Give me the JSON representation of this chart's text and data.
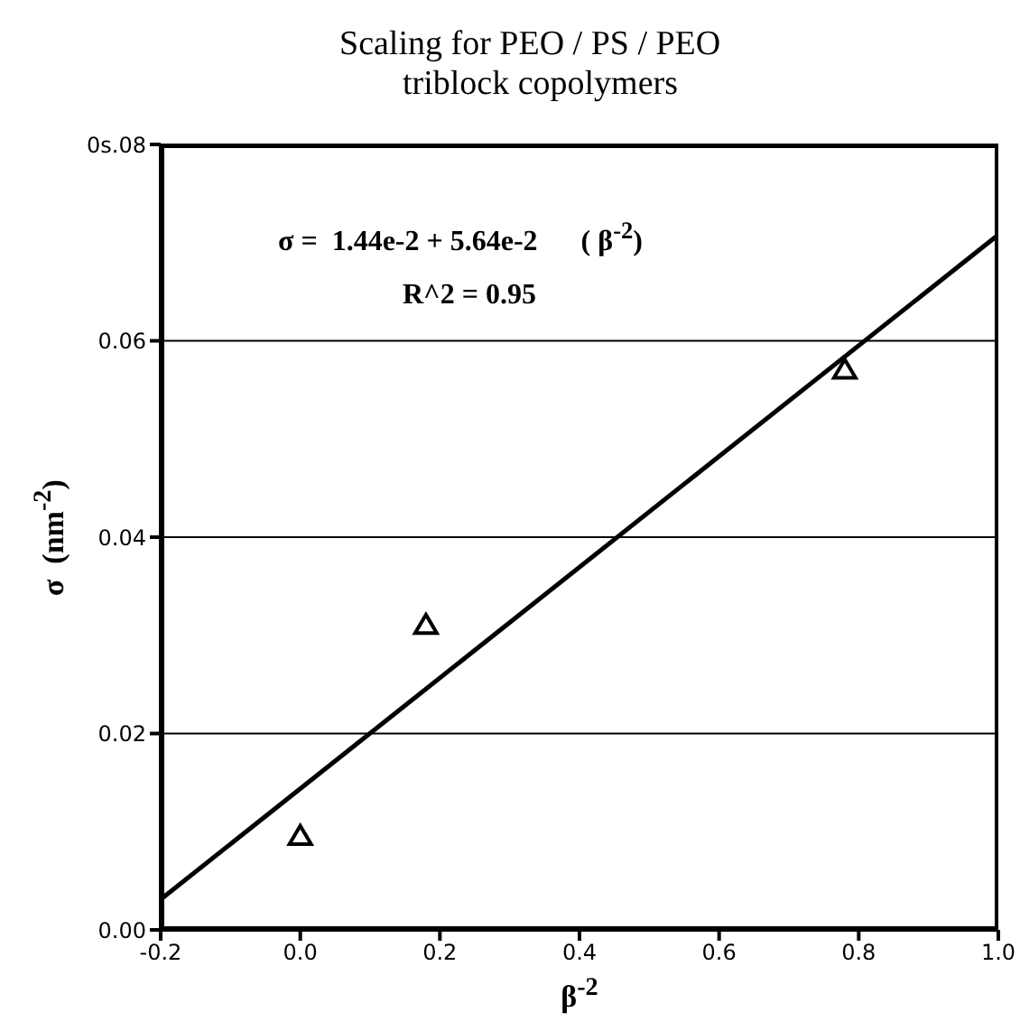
{
  "chart_data": {
    "type": "scatter",
    "title": "Scaling for PEO / PS / PEO\ntriblock copolymers",
    "xlabel": "β$^{-2}$",
    "ylabel": "σ  (nm$^{-2}$)",
    "annotations": [
      "σ =  1.44e-2 + 5.64e-2      ( β$^{-2}$)",
      "R^2 = 0.95"
    ],
    "series": [
      {
        "color": "#000000",
        "marker": "triangle",
        "x": [
          0.0,
          0.18,
          0.78
        ],
        "values": [
          0.0095,
          0.031,
          0.057
        ]
      },
      {
        "type": "line",
        "color": "#000000",
        "marker": "none",
        "line_style": "solid",
        "x": [
          -0.2,
          1.0
        ],
        "values": [
          0.0031,
          0.0708
        ]
      }
    ],
    "xlim": [
      -0.2,
      1.0
    ],
    "xticks": [
      {
        "value": -0.2,
        "label": "-0.2"
      },
      {
        "value": 0,
        "label": "0.0"
      },
      {
        "value": 0.2,
        "label": "0.2"
      },
      {
        "value": 0.4,
        "label": "0.4"
      },
      {
        "value": 0.6,
        "label": "0.6"
      },
      {
        "value": 0.8,
        "label": "0.8"
      },
      {
        "value": 1,
        "label": "1.0"
      }
    ],
    "ylim": [
      0,
      0.08
    ],
    "yticks": [
      {
        "value": 0,
        "label": "0.00"
      },
      {
        "value": 0.02,
        "label": "0.02"
      },
      {
        "value": 0.04,
        "label": "0.04"
      },
      {
        "value": 0.06,
        "label": "0.06"
      },
      {
        "value": 0.08,
        "label": "0s.08"
      }
    ],
    "grid": "y"
  }
}
